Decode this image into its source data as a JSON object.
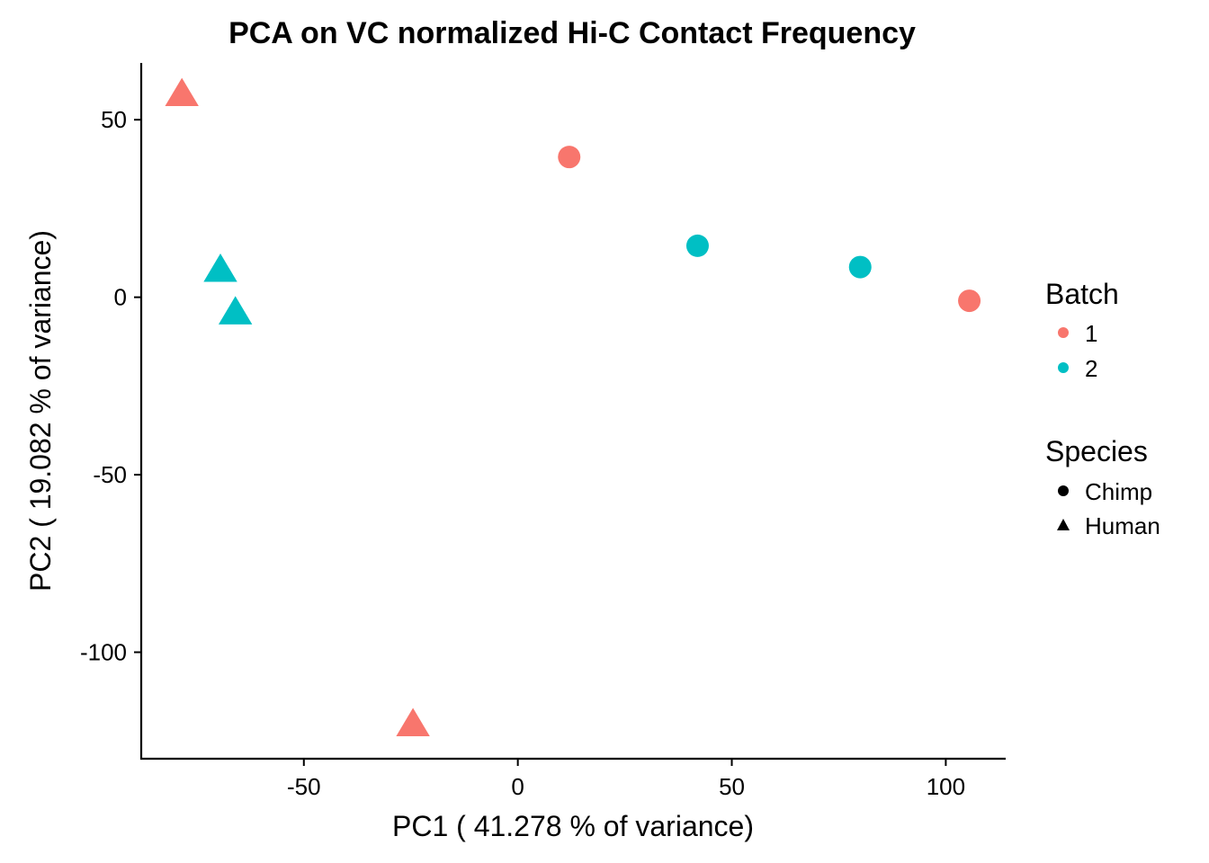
{
  "chart_data": {
    "type": "scatter",
    "title": "PCA on VC normalized Hi-C Contact Frequency",
    "xlabel": "PC1 ( 41.278 % of variance)",
    "ylabel": "PC2 ( 19.082 % of variance)",
    "xlim": [
      -88,
      114
    ],
    "ylim": [
      -130,
      66
    ],
    "x_ticks": [
      -50,
      0,
      50,
      100
    ],
    "x_tick_labels": [
      "-50",
      "0",
      "50",
      "100"
    ],
    "y_ticks": [
      50,
      0,
      -50,
      -100
    ],
    "y_tick_labels": [
      "50",
      "0",
      "-50",
      "-100"
    ],
    "grid": false,
    "points": [
      {
        "x": -78.5,
        "y": 57.5,
        "batch": "1",
        "species": "Human"
      },
      {
        "x": -69.5,
        "y": 8.0,
        "batch": "2",
        "species": "Human"
      },
      {
        "x": -66.0,
        "y": -4.0,
        "batch": "2",
        "species": "Human"
      },
      {
        "x": -24.5,
        "y": -120.0,
        "batch": "1",
        "species": "Human"
      },
      {
        "x": 12.0,
        "y": 39.5,
        "batch": "1",
        "species": "Chimp"
      },
      {
        "x": 42.0,
        "y": 14.5,
        "batch": "2",
        "species": "Chimp"
      },
      {
        "x": 80.0,
        "y": 8.5,
        "batch": "2",
        "species": "Chimp"
      },
      {
        "x": 105.5,
        "y": -1.0,
        "batch": "1",
        "species": "Chimp"
      }
    ],
    "legend": {
      "placement": "right",
      "color": {
        "title": "Batch",
        "entries": [
          {
            "label": "1",
            "color": "#F8766D"
          },
          {
            "label": "2",
            "color": "#00BFC4"
          }
        ]
      },
      "shape": {
        "title": "Species",
        "entries": [
          {
            "label": "Chimp",
            "shape": "circle"
          },
          {
            "label": "Human",
            "shape": "triangle"
          }
        ]
      }
    }
  }
}
